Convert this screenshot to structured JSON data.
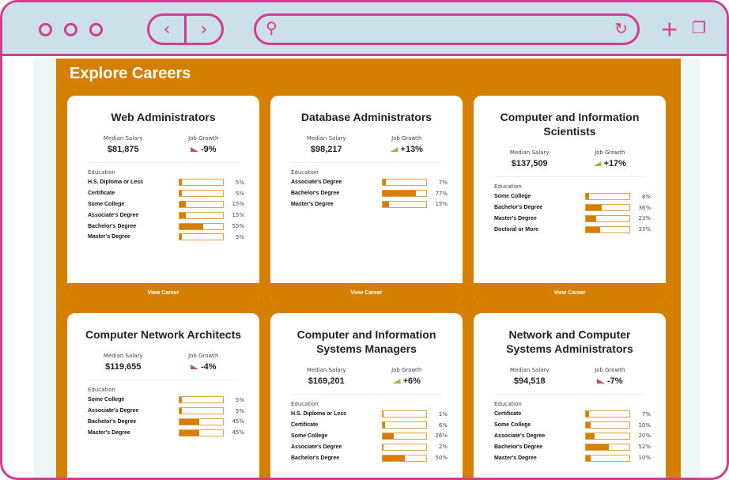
{
  "browser": {
    "icons": [
      "window-dot",
      "back-chevron",
      "forward-chevron",
      "search-icon",
      "reload-icon",
      "new-tab-plus",
      "tabs-icon"
    ]
  },
  "page": {
    "title": "Explore Careers",
    "view_label": "View Career",
    "salary_label": "Median Salary",
    "growth_label": "Job Growth",
    "education_label": "Education"
  },
  "colors": {
    "accent": "#d47f00",
    "frame": "#d23b8e",
    "growth_up": "#8cbf4a",
    "growth_down": "#c0504d"
  },
  "cards": [
    {
      "title": "Web Administrators",
      "salary": "$81,875",
      "growth": "-9%",
      "trend": "down",
      "education": [
        {
          "label": "H.S. Diploma or Less",
          "pct": 5
        },
        {
          "label": "Certificate",
          "pct": 5
        },
        {
          "label": "Some College",
          "pct": 15
        },
        {
          "label": "Associate's Degree",
          "pct": 15
        },
        {
          "label": "Bachelor's Degree",
          "pct": 55
        },
        {
          "label": "Master's Degree",
          "pct": 5
        }
      ]
    },
    {
      "title": "Database Administrators",
      "salary": "$98,217",
      "growth": "+13%",
      "trend": "up",
      "education": [
        {
          "label": "Associate's Degree",
          "pct": 7
        },
        {
          "label": "Bachelor's Degree",
          "pct": 77
        },
        {
          "label": "Master's Degree",
          "pct": 15
        }
      ]
    },
    {
      "title": "Computer and Information Scientists",
      "salary": "$137,509",
      "growth": "+17%",
      "trend": "up",
      "education": [
        {
          "label": "Some College",
          "pct": 8
        },
        {
          "label": "Bachelor's Degree",
          "pct": 36
        },
        {
          "label": "Master's Degree",
          "pct": 23
        },
        {
          "label": "Doctoral or More",
          "pct": 33
        }
      ]
    },
    {
      "title": "Computer Network Architects",
      "salary": "$119,655",
      "growth": "-4%",
      "trend": "down",
      "education": [
        {
          "label": "Some College",
          "pct": 5
        },
        {
          "label": "Associate's Degree",
          "pct": 5
        },
        {
          "label": "Bachelor's Degree",
          "pct": 45
        },
        {
          "label": "Master's Degree",
          "pct": 45
        }
      ]
    },
    {
      "title": "Computer and Information Systems Managers",
      "salary": "$169,201",
      "growth": "+6%",
      "trend": "up",
      "education": [
        {
          "label": "H.S. Diploma or Less",
          "pct": 1
        },
        {
          "label": "Certificate",
          "pct": 6
        },
        {
          "label": "Some College",
          "pct": 26
        },
        {
          "label": "Associate's Degree",
          "pct": 2
        },
        {
          "label": "Bachelor's Degree",
          "pct": 50
        }
      ]
    },
    {
      "title": "Network and Computer Systems Administrators",
      "salary": "$94,518",
      "growth": "-7%",
      "trend": "down",
      "education": [
        {
          "label": "Certificate",
          "pct": 7
        },
        {
          "label": "Some College",
          "pct": 10
        },
        {
          "label": "Associate's Degree",
          "pct": 20
        },
        {
          "label": "Bachelor's Degree",
          "pct": 52
        },
        {
          "label": "Master's Degree",
          "pct": 10
        }
      ]
    }
  ]
}
